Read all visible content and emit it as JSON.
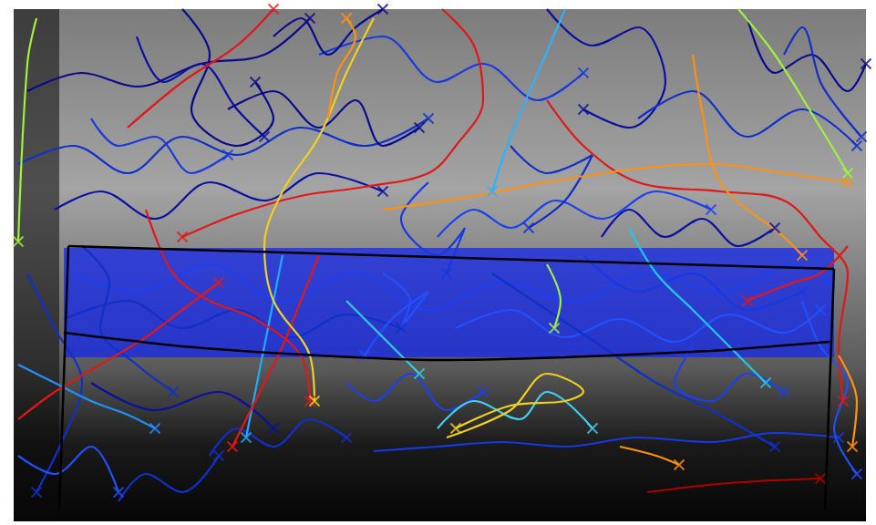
{
  "chart_data": {
    "type": "line",
    "tick_labels": false,
    "grid": false,
    "xlim": [
      0,
      961
    ],
    "ylim": [
      576,
      0
    ],
    "series": [
      {
        "color": "#0a0a8c",
        "marker": "x",
        "x": [
          30,
          90,
          150,
          220,
          290,
          340
        ],
        "values": [
          100,
          80,
          95,
          70,
          60,
          20
        ]
      },
      {
        "color": "#1030c8",
        "marker": "x",
        "x": [
          20,
          80,
          140,
          200,
          260,
          330,
          400,
          470
        ],
        "values": [
          180,
          160,
          190,
          150,
          170,
          140,
          160,
          130
        ]
      },
      {
        "color": "#0a0a8c",
        "marker": "x",
        "x": [
          200,
          230,
          210,
          260,
          300,
          280
        ],
        "values": [
          10,
          60,
          120,
          160,
          130,
          90
        ]
      },
      {
        "color": "#1838e0",
        "marker": "x",
        "x": [
          350,
          420,
          480,
          530,
          590,
          640
        ],
        "values": [
          60,
          40,
          90,
          70,
          110,
          80
        ]
      },
      {
        "color": "#0a10a0",
        "marker": "x",
        "x": [
          600,
          650,
          700,
          730,
          690,
          640
        ],
        "values": [
          10,
          50,
          30,
          90,
          140,
          120
        ]
      },
      {
        "color": "#1030c8",
        "marker": "x",
        "x": [
          700,
          760,
          820,
          880,
          940
        ],
        "values": [
          130,
          100,
          150,
          120,
          160
        ]
      },
      {
        "color": "#0a0a8c",
        "marker": "x",
        "x": [
          820,
          850,
          890,
          930,
          950
        ],
        "values": [
          20,
          80,
          60,
          100,
          70
        ]
      },
      {
        "color": "#1a40f0",
        "marker": "x",
        "x": [
          480,
          520,
          560,
          610,
          660,
          720,
          780
        ],
        "values": [
          260,
          230,
          250,
          220,
          240,
          210,
          230
        ]
      },
      {
        "color": "#0a10a0",
        "marker": "x",
        "x": [
          60,
          110,
          170,
          230,
          290,
          350,
          420
        ],
        "values": [
          230,
          210,
          240,
          200,
          220,
          190,
          210
        ]
      },
      {
        "color": "#1a40f0",
        "marker": "x",
        "x": [
          80,
          150,
          230,
          310,
          390,
          470,
          550,
          630,
          710,
          790,
          870,
          910
        ],
        "values": [
          300,
          320,
          290,
          330,
          300,
          340,
          310,
          330,
          300,
          320,
          290,
          310
        ]
      },
      {
        "color": "#1030c8",
        "marker": "x",
        "x": [
          70,
          140,
          200,
          260,
          320,
          380,
          440
        ],
        "values": [
          350,
          330,
          360,
          340,
          370,
          345,
          360
        ]
      },
      {
        "color": "#2050ff",
        "marker": "x",
        "x": [
          500,
          560,
          620,
          680,
          740,
          800,
          860,
          900
        ],
        "values": [
          360,
          340,
          370,
          350,
          375,
          345,
          365,
          340
        ]
      },
      {
        "color": "#1030c8",
        "marker": "x",
        "x": [
          90,
          120,
          110,
          150,
          190
        ],
        "values": [
          270,
          310,
          360,
          400,
          430
        ]
      },
      {
        "color": "#2050ff",
        "marker": "x",
        "x": [
          420,
          450,
          440,
          470,
          430,
          400
        ],
        "values": [
          300,
          330,
          360,
          320,
          350,
          390
        ]
      },
      {
        "color": "#1838e0",
        "marker": "x",
        "x": [
          640,
          700,
          760,
          820,
          880
        ],
        "values": [
          280,
          320,
          300,
          340,
          320
        ]
      },
      {
        "color": "#1030c8",
        "marker": "x",
        "x": [
          540,
          600,
          660,
          720,
          780,
          850
        ],
        "values": [
          300,
          340,
          380,
          420,
          450,
          490
        ]
      },
      {
        "color": "#0a10a0",
        "marker": "x",
        "x": [
          100,
          170,
          240,
          300
        ],
        "values": [
          420,
          450,
          430,
          470
        ]
      },
      {
        "color": "#1838e0",
        "marker": "x",
        "x": [
          410,
          480,
          550,
          620,
          700,
          780,
          850,
          920
        ],
        "values": [
          495,
          490,
          485,
          490,
          480,
          485,
          475,
          480
        ]
      },
      {
        "color": "#1030c8",
        "marker": "x",
        "x": [
          30,
          60,
          90,
          70,
          40
        ],
        "values": [
          300,
          360,
          420,
          480,
          540
        ]
      },
      {
        "color": "#2050ff",
        "marker": "x",
        "x": [
          880,
          900,
          930,
          915,
          940
        ],
        "values": [
          330,
          380,
          420,
          470,
          520
        ]
      },
      {
        "color": "#0a0a8c",
        "marker": "x",
        "x": [
          250,
          300,
          350,
          390,
          420,
          460
        ],
        "values": [
          120,
          100,
          140,
          110,
          160,
          140
        ]
      },
      {
        "color": "#1030c8",
        "marker": "x",
        "x": [
          560,
          600,
          650,
          620,
          580
        ],
        "values": [
          160,
          190,
          170,
          220,
          250
        ]
      },
      {
        "color": "#0a10a0",
        "marker": "x",
        "x": [
          150,
          180,
          220,
          260,
          290
        ],
        "values": [
          40,
          90,
          70,
          120,
          150
        ]
      },
      {
        "color": "#1838e0",
        "marker": "x",
        "x": [
          100,
          130,
          170,
          210,
          250
        ],
        "values": [
          130,
          160,
          150,
          190,
          170
        ]
      },
      {
        "color": "#0a10a0",
        "marker": "x",
        "x": [
          660,
          690,
          730,
          770,
          810,
          850
        ],
        "values": [
          260,
          230,
          260,
          240,
          270,
          250
        ]
      },
      {
        "color": "#1a40f0",
        "marker": "x",
        "x": [
          380,
          410,
          450,
          490,
          530
        ],
        "values": [
          420,
          440,
          410,
          450,
          430
        ]
      },
      {
        "color": "#1030c8",
        "marker": "x",
        "x": [
          230,
          260,
          300,
          340,
          380
        ],
        "values": [
          500,
          470,
          490,
          460,
          480
        ]
      },
      {
        "color": "#2050ff",
        "marker": "x",
        "x": [
          20,
          60,
          100,
          130
        ],
        "values": [
          500,
          520,
          490,
          540
        ]
      },
      {
        "color": "#0a0a8c",
        "marker": "x",
        "x": [
          300,
          330,
          360,
          390,
          420
        ],
        "values": [
          40,
          20,
          60,
          30,
          10
        ]
      },
      {
        "color": "#1030c8",
        "marker": "x",
        "x": [
          860,
          880,
          900,
          920,
          945
        ],
        "values": [
          60,
          30,
          90,
          120,
          150
        ]
      },
      {
        "color": "#1838e0",
        "marker": "x",
        "x": [
          470,
          440,
          480,
          510,
          490
        ],
        "values": [
          200,
          240,
          280,
          250,
          300
        ]
      },
      {
        "color": "#1a40f0",
        "marker": "x",
        "x": [
          760,
          740,
          780,
          820,
          860
        ],
        "values": [
          380,
          420,
          440,
          410,
          430
        ]
      },
      {
        "color": "#1030c8",
        "marker": "x",
        "x": [
          130,
          160,
          200,
          240
        ],
        "values": [
          550,
          520,
          540,
          500
        ]
      },
      {
        "color": "#22aaff",
        "marker": "x",
        "x": [
          310,
          300,
          290,
          280,
          270
        ],
        "values": [
          280,
          330,
          380,
          430,
          480
        ]
      },
      {
        "color": "#20c8e8",
        "marker": "x",
        "x": [
          690,
          720,
          760,
          800,
          840
        ],
        "values": [
          250,
          300,
          340,
          380,
          420
        ]
      },
      {
        "color": "#30b0ff",
        "marker": "x",
        "x": [
          620,
          590,
          560,
          540
        ],
        "values": [
          10,
          80,
          150,
          210
        ]
      },
      {
        "color": "#40d0f0",
        "marker": "x",
        "x": [
          480,
          520,
          570,
          600,
          650
        ],
        "values": [
          470,
          440,
          460,
          430,
          470
        ]
      },
      {
        "color": "#2090ff",
        "marker": "x",
        "x": [
          20,
          60,
          100,
          140,
          170
        ],
        "values": [
          400,
          420,
          440,
          455,
          470
        ]
      },
      {
        "color": "#38c8e0",
        "marker": "x",
        "x": [
          380,
          410,
          440,
          460
        ],
        "values": [
          330,
          360,
          390,
          410
        ]
      },
      {
        "color": "#e01818",
        "marker": "x",
        "x": [
          140,
          200,
          260,
          300
        ],
        "values": [
          140,
          90,
          50,
          10
        ]
      },
      {
        "color": "#e01818",
        "marker": "x",
        "x": [
          485,
          520,
          530,
          500,
          470,
          400,
          330,
          260,
          200
        ],
        "values": [
          10,
          50,
          110,
          160,
          190,
          205,
          215,
          235,
          260
        ]
      },
      {
        "color": "#e01818",
        "marker": "x",
        "x": [
          600,
          640,
          700,
          790,
          860,
          900,
          930,
          920,
          925
        ],
        "values": [
          110,
          160,
          200,
          210,
          220,
          260,
          300,
          380,
          440
        ]
      },
      {
        "color": "#e01818",
        "marker": "x",
        "x": [
          350,
          330,
          310,
          290,
          270,
          255
        ],
        "values": [
          280,
          330,
          380,
          420,
          460,
          490
        ]
      },
      {
        "color": "#b00000",
        "marker": "x",
        "x": [
          710,
          800,
          900
        ],
        "values": [
          540,
          530,
          525
        ]
      },
      {
        "color": "#e01818",
        "marker": "x",
        "x": [
          160,
          190,
          230,
          280,
          330,
          340
        ],
        "values": [
          230,
          300,
          330,
          350,
          390,
          440
        ]
      },
      {
        "color": "#e01818",
        "marker": "x",
        "x": [
          20,
          60,
          110,
          160,
          200,
          240
        ],
        "values": [
          460,
          430,
          400,
          370,
          340,
          310
        ]
      },
      {
        "color": "#e01818",
        "marker": "x",
        "x": [
          930,
          900,
          870,
          820
        ],
        "values": [
          270,
          300,
          310,
          330
        ]
      },
      {
        "color": "#f0d020",
        "marker": "x",
        "x": [
          410,
          380,
          350,
          310,
          290,
          300,
          340,
          345
        ],
        "values": [
          20,
          80,
          150,
          210,
          270,
          330,
          390,
          440
        ]
      },
      {
        "color": "#f0d020",
        "marker": "x",
        "x": [
          490,
          560,
          600,
          640,
          620,
          560,
          500
        ],
        "values": [
          480,
          450,
          410,
          430,
          440,
          445,
          470
        ]
      },
      {
        "color": "#ff9010",
        "marker": "x",
        "x": [
          760,
          770,
          790,
          860,
          880
        ],
        "values": [
          60,
          120,
          200,
          260,
          280
        ]
      },
      {
        "color": "#ff9010",
        "marker": "x",
        "x": [
          360,
          370,
          390,
          380
        ],
        "values": [
          130,
          80,
          40,
          20
        ]
      },
      {
        "color": "#ff9010",
        "marker": "x",
        "x": [
          680,
          720,
          745
        ],
        "values": [
          490,
          500,
          510
        ]
      },
      {
        "color": "#ff9010",
        "marker": "x",
        "x": [
          920,
          940,
          935
        ],
        "values": [
          390,
          440,
          490
        ]
      },
      {
        "color": "#ff9010",
        "marker": "x",
        "x": [
          420,
          520,
          600,
          700,
          780,
          860,
          930
        ],
        "values": [
          230,
          215,
          200,
          185,
          180,
          190,
          200
        ]
      },
      {
        "color": "#a0f040",
        "marker": "x",
        "x": [
          600,
          615,
          608
        ],
        "values": [
          290,
          330,
          360
        ]
      },
      {
        "color": "#a0f040",
        "marker": "x",
        "x": [
          810,
          850,
          900,
          930
        ],
        "values": [
          10,
          60,
          140,
          190
        ]
      },
      {
        "color": "#a0f040",
        "marker": "x",
        "x": [
          40,
          30,
          20
        ],
        "values": [
          20,
          70,
          265
        ]
      },
      {
        "color": "#000000",
        "marker": "none",
        "line_style": "solid",
        "x": [
          75,
          65
        ],
        "values": [
          270,
          560
        ]
      },
      {
        "color": "#000000",
        "marker": "none",
        "line_style": "solid",
        "x": [
          75,
          915
        ],
        "values": [
          270,
          295
        ]
      },
      {
        "color": "#000000",
        "marker": "none",
        "line_style": "solid",
        "x": [
          915,
          905
        ],
        "values": [
          295,
          560
        ]
      },
      {
        "color": "#000000",
        "marker": "none",
        "line_style": "solid",
        "x": [
          70,
          200,
          350,
          480,
          620,
          780,
          910
        ],
        "values": [
          365,
          380,
          390,
          395,
          392,
          385,
          375
        ]
      }
    ]
  }
}
